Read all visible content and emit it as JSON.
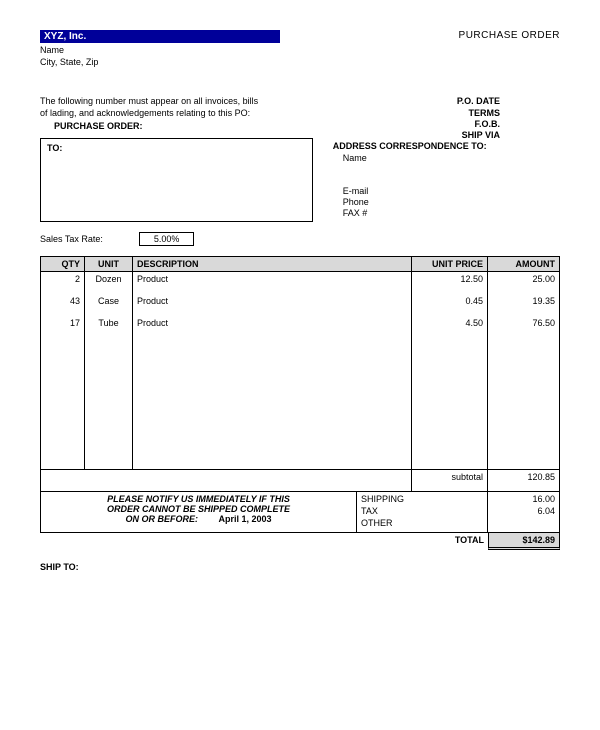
{
  "header": {
    "company_name": "XYZ, Inc.",
    "name_line": "Name",
    "city_line": "City, State, Zip",
    "doc_title": "PURCHASE ORDER"
  },
  "notice": {
    "line1": "The following number must appear on all invoices, bills",
    "line2": "of lading, and acknowledgements relating to this PO:",
    "po_label": "PURCHASE ORDER:"
  },
  "to_box": {
    "label": "TO:"
  },
  "po_fields": {
    "date_label": "P.O. DATE",
    "terms_label": "TERMS",
    "fob_label": "F.O.B.",
    "shipvia_label": "SHIP VIA",
    "address_label": "ADDRESS CORRESPONDENCE TO:",
    "name_val": "Name",
    "email_label": "E-mail",
    "phone_label": "Phone",
    "fax_label": "FAX #"
  },
  "tax": {
    "label": "Sales Tax Rate:",
    "value": "5.00%"
  },
  "table": {
    "columns": {
      "qty": "QTY",
      "unit": "UNIT",
      "desc": "DESCRIPTION",
      "price": "UNIT PRICE",
      "amount": "AMOUNT"
    },
    "rows": [
      {
        "qty": "2",
        "unit": "Dozen",
        "desc": "Product",
        "price": "12.50",
        "amount": "25.00"
      },
      {
        "qty": "43",
        "unit": "Case",
        "desc": "Product",
        "price": "0.45",
        "amount": "19.35"
      },
      {
        "qty": "17",
        "unit": "Tube",
        "desc": "Product",
        "price": "4.50",
        "amount": "76.50"
      }
    ],
    "subtotal_label": "subtotal",
    "subtotal_value": "120.85"
  },
  "footer": {
    "notify1": "PLEASE NOTIFY US IMMEDIATELY IF THIS",
    "notify2": "ORDER CANNOT BE SHIPPED COMPLETE",
    "onbefore_label": "ON OR BEFORE:",
    "onbefore_date": "April 1, 2003",
    "shipping_label": "SHIPPING",
    "shipping_value": "16.00",
    "tax_label": "TAX",
    "tax_value": "6.04",
    "other_label": "OTHER",
    "other_value": "",
    "total_label": "TOTAL",
    "total_value": "$142.89"
  },
  "shipto": {
    "label": "SHIP TO:"
  },
  "colors": {
    "brand_blue": "#000099",
    "header_gray": "#d9d9d9"
  }
}
